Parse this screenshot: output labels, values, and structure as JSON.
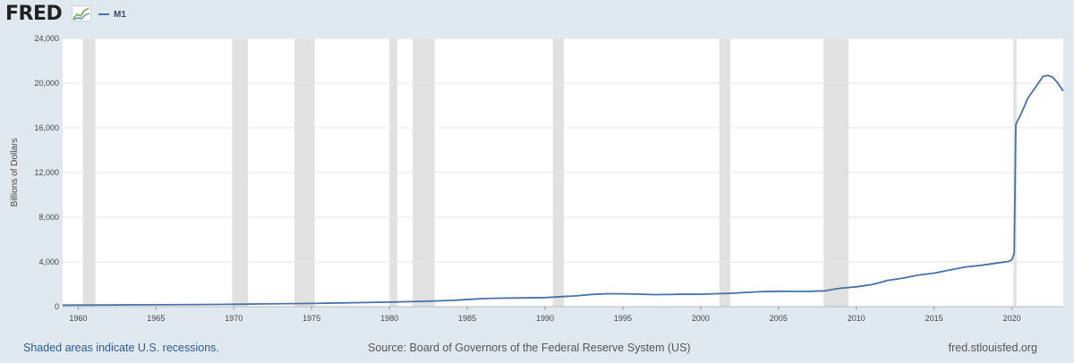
{
  "header": {
    "logo_text": "FRED",
    "logo_mark": "chart-line-icon",
    "legend_label": "M1"
  },
  "colors": {
    "background": "#e1e9f0",
    "plot_background": "#ffffff",
    "series": "#4572a7",
    "recession": "#e1e1e1",
    "grid": "#e5e5e5",
    "footer_link": "#2a5c8f"
  },
  "footer": {
    "left_note": "Shaded areas indicate U.S. recessions.",
    "source": "Source: Board of Governors of the Federal Reserve System (US)",
    "site": "fred.stlouisfed.org"
  },
  "chart_data": {
    "type": "line",
    "title": "",
    "xlabel": "",
    "ylabel": "Billions of Dollars",
    "xlim": [
      1959.0,
      2023.3
    ],
    "ylim": [
      0,
      24000
    ],
    "x_ticks": [
      1960,
      1965,
      1970,
      1975,
      1980,
      1985,
      1990,
      1995,
      2000,
      2005,
      2010,
      2015,
      2020
    ],
    "x_tick_labels": [
      "1960",
      "1965",
      "1970",
      "1975",
      "1980",
      "1985",
      "1990",
      "1995",
      "2000",
      "2005",
      "2010",
      "2015",
      "2020"
    ],
    "y_ticks": [
      0,
      4000,
      8000,
      12000,
      16000,
      20000,
      24000
    ],
    "y_tick_labels": [
      "0",
      "4,000",
      "8,000",
      "12,000",
      "16,000",
      "20,000",
      "24,000"
    ],
    "grid": true,
    "legend": "top-left",
    "recessions": [
      [
        1960.3,
        1961.1
      ],
      [
        1969.9,
        1970.9
      ],
      [
        1973.9,
        1975.2
      ],
      [
        1980.0,
        1980.5
      ],
      [
        1981.5,
        1982.9
      ],
      [
        1990.5,
        1991.2
      ],
      [
        2001.2,
        2001.9
      ],
      [
        2007.9,
        2009.5
      ],
      [
        2020.1,
        2020.3
      ]
    ],
    "series": [
      {
        "name": "M1",
        "x": [
          1959.0,
          1962,
          1965,
          1968,
          1970,
          1972,
          1975,
          1978,
          1980,
          1982,
          1984,
          1986,
          1987,
          1988,
          1990,
          1992,
          1993,
          1994,
          1995,
          1996,
          1997,
          1998,
          1999,
          2000,
          2001,
          2002,
          2003,
          2004,
          2005,
          2006,
          2007,
          2008,
          2008.7,
          2009.0,
          2010,
          2011,
          2011.5,
          2012,
          2013,
          2014,
          2015,
          2016,
          2017,
          2018,
          2019,
          2019.8,
          2020.0,
          2020.15,
          2020.25,
          2020.35,
          2020.5,
          2020.8,
          2021.0,
          2021.5,
          2021.8,
          2022.0,
          2022.3,
          2022.6,
          2022.9,
          2023.1,
          2023.3
        ],
        "values": [
          140,
          150,
          168,
          195,
          215,
          250,
          290,
          360,
          410,
          470,
          560,
          720,
          760,
          780,
          820,
          970,
          1100,
          1160,
          1150,
          1120,
          1080,
          1090,
          1120,
          1110,
          1160,
          1200,
          1280,
          1350,
          1380,
          1370,
          1380,
          1420,
          1600,
          1650,
          1780,
          1980,
          2150,
          2350,
          2550,
          2830,
          3000,
          3280,
          3550,
          3700,
          3900,
          4050,
          4200,
          4800,
          16300,
          16600,
          17000,
          17900,
          18600,
          19600,
          20200,
          20600,
          20700,
          20550,
          20100,
          19700,
          19300
        ]
      }
    ]
  }
}
